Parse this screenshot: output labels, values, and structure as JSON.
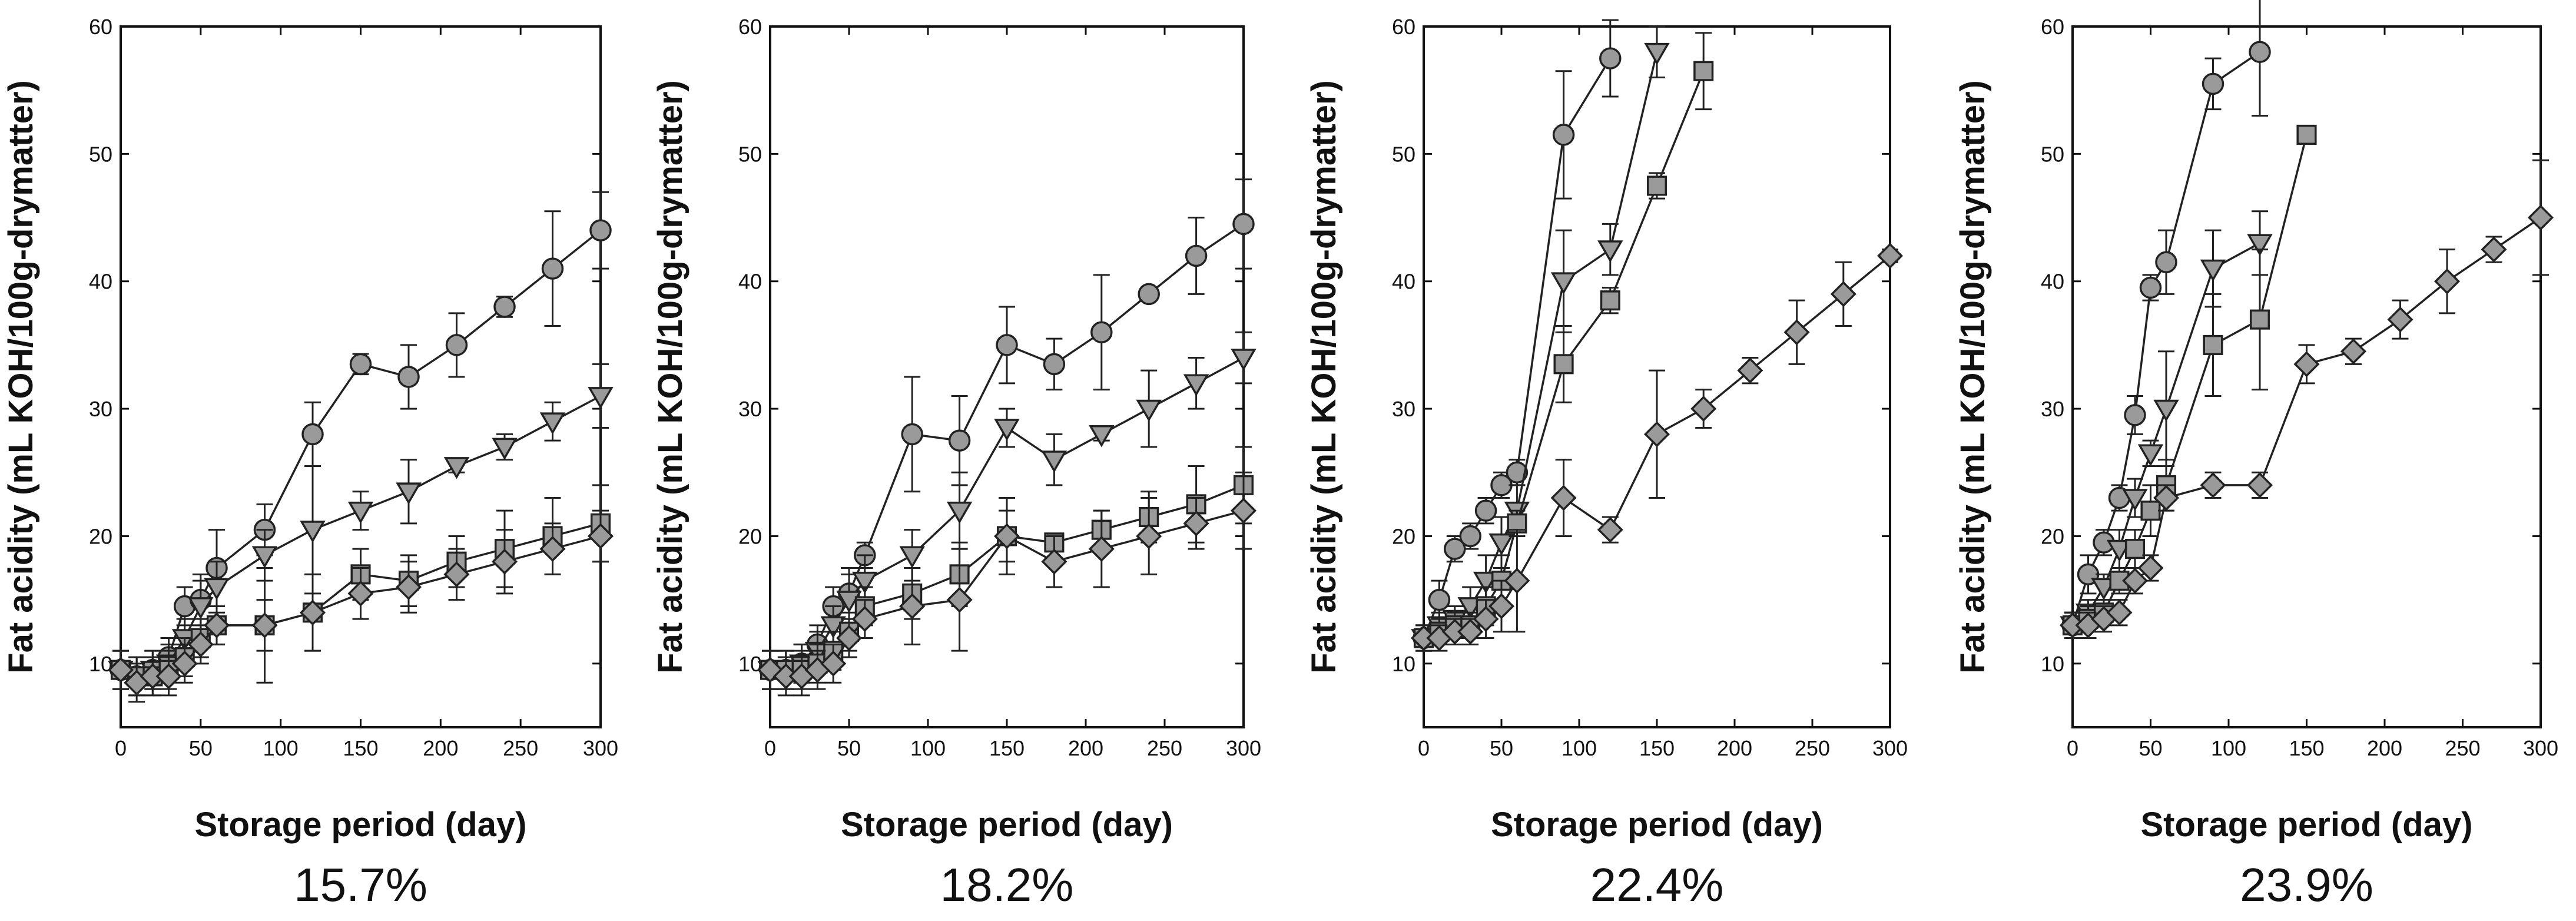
{
  "chart_data": [
    {
      "type": "line",
      "caption": "15.7%",
      "xlabel": "Storage period (day)",
      "ylabel": "Fat acidity (mL KOH/100g-drymatter)",
      "xlim": [
        0,
        300
      ],
      "ylim": [
        5,
        60
      ],
      "xticks": [
        0,
        50,
        100,
        150,
        200,
        250,
        300
      ],
      "yticks": [
        10,
        20,
        30,
        40,
        50,
        60
      ],
      "xtick_labels": [
        "0",
        "50",
        "100",
        "150",
        "200",
        "250",
        "300"
      ],
      "ytick_labels": [
        "10",
        "20",
        "30",
        "40",
        "50",
        "60"
      ],
      "series": [
        {
          "marker": "circle",
          "x": [
            0,
            10,
            20,
            30,
            40,
            50,
            60,
            90,
            120,
            150,
            180,
            210,
            240,
            270,
            300
          ],
          "y": [
            9.5,
            9,
            9.5,
            10.5,
            14.5,
            15,
            17.5,
            20.5,
            28,
            33.5,
            32.5,
            35,
            38,
            41,
            44
          ],
          "err": [
            1.5,
            1.5,
            1.5,
            1.5,
            1.5,
            2,
            3,
            2,
            2.5,
            0.8,
            2.5,
            2.5,
            0.8,
            4.5,
            3
          ]
        },
        {
          "marker": "triangle-down",
          "x": [
            0,
            10,
            20,
            30,
            40,
            50,
            60,
            90,
            120,
            150,
            180,
            210,
            240,
            270,
            300
          ],
          "y": [
            9.5,
            9,
            9.5,
            10,
            12,
            14.5,
            16,
            18.5,
            20.5,
            22,
            23.5,
            25.5,
            27,
            29,
            31
          ],
          "err": [
            1.5,
            1.5,
            1.5,
            1.5,
            1.5,
            2,
            2,
            2,
            5,
            1.5,
            2.5,
            0.5,
            1,
            1.5,
            2.5
          ]
        },
        {
          "marker": "square",
          "x": [
            0,
            10,
            20,
            30,
            40,
            50,
            60,
            90,
            120,
            150,
            180,
            210,
            240,
            270,
            300
          ],
          "y": [
            9.5,
            9,
            9,
            9.5,
            10.5,
            12,
            13,
            13,
            14,
            17,
            16.5,
            18,
            19,
            20,
            21
          ],
          "err": [
            1.5,
            1.5,
            1.5,
            1.5,
            1.5,
            1.5,
            1.5,
            4.5,
            3,
            2,
            2,
            2,
            3,
            3,
            3
          ]
        },
        {
          "marker": "diamond",
          "x": [
            0,
            10,
            20,
            30,
            40,
            50,
            60,
            90,
            120,
            150,
            180,
            210,
            240,
            270,
            300
          ],
          "y": [
            9.5,
            8.5,
            9,
            9,
            10,
            11.5,
            13,
            13,
            14,
            15.5,
            16,
            17,
            18,
            19,
            20
          ],
          "err": [
            1.5,
            1.5,
            1.5,
            1.5,
            1.5,
            1.5,
            1.5,
            2,
            3,
            2,
            2,
            2,
            2.5,
            2,
            2
          ]
        }
      ]
    },
    {
      "type": "line",
      "caption": "18.2%",
      "xlabel": "Storage period (day)",
      "ylabel": "Fat acidity (mL KOH/100g-drymatter)",
      "xlim": [
        0,
        300
      ],
      "ylim": [
        5,
        60
      ],
      "xticks": [
        0,
        50,
        100,
        150,
        200,
        250,
        300
      ],
      "yticks": [
        10,
        20,
        30,
        40,
        50,
        60
      ],
      "xtick_labels": [
        "0",
        "50",
        "100",
        "150",
        "200",
        "250",
        "300"
      ],
      "ytick_labels": [
        "10",
        "20",
        "30",
        "40",
        "50",
        "60"
      ],
      "series": [
        {
          "marker": "circle",
          "x": [
            0,
            10,
            20,
            30,
            40,
            50,
            60,
            90,
            120,
            150,
            180,
            210,
            240,
            270,
            300
          ],
          "y": [
            9.5,
            9.5,
            10,
            11.5,
            14.5,
            15.5,
            18.5,
            28,
            27.5,
            35,
            33.5,
            36,
            39,
            42,
            44.5
          ],
          "err": [
            1.5,
            1.5,
            1.5,
            1.5,
            1.5,
            2,
            1,
            4.5,
            3.5,
            3,
            2,
            4.5,
            0.5,
            3,
            3.5
          ]
        },
        {
          "marker": "triangle-down",
          "x": [
            0,
            10,
            20,
            30,
            40,
            50,
            60,
            90,
            120,
            150,
            180,
            210,
            240,
            270,
            300
          ],
          "y": [
            9.5,
            9.5,
            10,
            11,
            13,
            15,
            16.5,
            18.5,
            22,
            28.5,
            26,
            28,
            30,
            32,
            34
          ],
          "err": [
            1.5,
            1.5,
            1.5,
            1.5,
            1.5,
            2,
            2,
            2,
            3,
            1.5,
            2,
            0.5,
            3,
            2,
            2
          ]
        },
        {
          "marker": "square",
          "x": [
            0,
            10,
            20,
            30,
            40,
            50,
            60,
            90,
            120,
            150,
            180,
            210,
            240,
            270,
            300
          ],
          "y": [
            9.5,
            9.5,
            9.5,
            10,
            11,
            12.5,
            14.5,
            15.5,
            17,
            20,
            19.5,
            20.5,
            21.5,
            22.5,
            24
          ],
          "err": [
            1.5,
            1.5,
            1.5,
            1.5,
            1.5,
            1.5,
            1.5,
            2,
            2.5,
            2,
            0.5,
            1.5,
            2,
            3,
            3
          ]
        },
        {
          "marker": "diamond",
          "x": [
            0,
            10,
            20,
            30,
            40,
            50,
            60,
            90,
            120,
            150,
            180,
            210,
            240,
            270,
            300
          ],
          "y": [
            9.5,
            9,
            9,
            9.5,
            10,
            12,
            13.5,
            14.5,
            15,
            20,
            18,
            19,
            20,
            21,
            22
          ],
          "err": [
            1.5,
            1.5,
            1.5,
            1.5,
            1.5,
            1.5,
            1.5,
            3,
            4,
            3,
            2,
            3,
            3,
            2,
            3
          ]
        }
      ]
    },
    {
      "type": "line",
      "caption": "22.4%",
      "xlabel": "Storage period (day)",
      "ylabel": "Fat acidity (mL KOH/100g-drymatter)",
      "xlim": [
        0,
        300
      ],
      "ylim": [
        5,
        60
      ],
      "xticks": [
        0,
        50,
        100,
        150,
        200,
        250,
        300
      ],
      "yticks": [
        10,
        20,
        30,
        40,
        50,
        60
      ],
      "xtick_labels": [
        "0",
        "50",
        "100",
        "150",
        "200",
        "250",
        "300"
      ],
      "ytick_labels": [
        "10",
        "20",
        "30",
        "40",
        "50",
        "60"
      ],
      "series": [
        {
          "marker": "circle",
          "x": [
            0,
            10,
            20,
            30,
            40,
            50,
            60,
            90,
            120
          ],
          "y": [
            12,
            15,
            19,
            20,
            22,
            24,
            25,
            51.5,
            57.5
          ],
          "err": [
            1,
            1.5,
            1,
            1,
            1,
            1,
            1,
            5,
            3
          ]
        },
        {
          "marker": "triangle-down",
          "x": [
            0,
            10,
            20,
            30,
            40,
            50,
            60,
            90,
            120,
            150
          ],
          "y": [
            12,
            13,
            13.5,
            14.5,
            16.5,
            19.5,
            22,
            40,
            42.5,
            58
          ],
          "err": [
            1,
            1,
            1,
            1.5,
            2,
            2,
            2,
            4,
            2,
            2
          ]
        },
        {
          "marker": "square",
          "x": [
            0,
            10,
            20,
            30,
            40,
            50,
            60,
            90,
            120,
            150,
            180
          ],
          "y": [
            12,
            12.5,
            13,
            13,
            14.5,
            16.5,
            21,
            33.5,
            38.5,
            47.5,
            56.5
          ],
          "err": [
            1,
            1,
            1,
            1,
            1.5,
            2,
            1,
            3,
            1,
            1,
            3
          ]
        },
        {
          "marker": "diamond",
          "x": [
            0,
            10,
            20,
            30,
            40,
            50,
            60,
            90,
            120,
            150,
            180,
            210,
            240,
            270,
            300
          ],
          "y": [
            12,
            12,
            12.5,
            12.5,
            13.5,
            14.5,
            16.5,
            23,
            20.5,
            28,
            30,
            33,
            36,
            39,
            42
          ],
          "err": [
            1,
            1,
            1,
            1,
            1.5,
            2,
            4,
            3,
            1,
            5,
            1.5,
            1,
            2.5,
            2.5,
            0.5
          ]
        }
      ]
    },
    {
      "type": "line",
      "caption": "23.9%",
      "xlabel": "Storage period (day)",
      "ylabel": "Fat acidity (mL KOH/100g-drymatter)",
      "xlim": [
        0,
        300
      ],
      "ylim": [
        5,
        60
      ],
      "xticks": [
        0,
        50,
        100,
        150,
        200,
        250,
        300
      ],
      "yticks": [
        10,
        20,
        30,
        40,
        50,
        60
      ],
      "xtick_labels": [
        "0",
        "50",
        "100",
        "150",
        "200",
        "250",
        "300"
      ],
      "ytick_labels": [
        "10",
        "20",
        "30",
        "40",
        "50",
        "60"
      ],
      "series": [
        {
          "marker": "circle",
          "x": [
            0,
            10,
            20,
            30,
            40,
            50,
            60,
            90,
            120
          ],
          "y": [
            13,
            17,
            19.5,
            23,
            29.5,
            39.5,
            41.5,
            55.5,
            58
          ],
          "err": [
            1,
            1.5,
            1,
            1,
            1.5,
            1,
            2.5,
            2,
            5
          ]
        },
        {
          "marker": "triangle-down",
          "x": [
            0,
            10,
            20,
            30,
            40,
            50,
            60,
            90,
            120
          ],
          "y": [
            13,
            14,
            16,
            19,
            23,
            26.5,
            30,
            41,
            43
          ],
          "err": [
            1,
            1,
            1,
            1.5,
            1.5,
            1,
            4.5,
            3,
            2.5
          ]
        },
        {
          "marker": "square",
          "x": [
            0,
            10,
            20,
            30,
            40,
            50,
            60,
            90,
            120,
            150
          ],
          "y": [
            13,
            13.5,
            14,
            16.5,
            19,
            22,
            24,
            35,
            37,
            51.5
          ],
          "err": [
            1,
            1,
            1,
            1,
            1.5,
            2,
            2,
            4,
            5.5,
            0.5
          ]
        },
        {
          "marker": "diamond",
          "x": [
            0,
            10,
            20,
            30,
            40,
            50,
            60,
            90,
            120,
            150,
            180,
            210,
            240,
            270,
            300
          ],
          "y": [
            13,
            13,
            13.5,
            14,
            16.5,
            17.5,
            23,
            24,
            24,
            33.5,
            34.5,
            37,
            40,
            42.5,
            45
          ],
          "err": [
            1,
            1,
            1,
            1,
            1,
            1,
            1,
            1,
            1,
            1.5,
            1,
            1.5,
            2.5,
            1,
            4.5
          ]
        }
      ]
    }
  ]
}
